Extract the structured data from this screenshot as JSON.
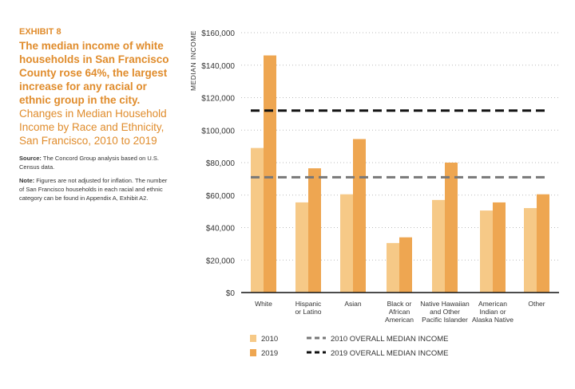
{
  "exhibit": "EXHIBIT 8",
  "headline": "The median income of white households in San Francisco County rose 64%, the largest increase for any racial or ethnic group in the city.",
  "subtitle": "Changes in Median Household Income by Race and Ethnicity, San Francisco, 2010 to 2019",
  "source_label": "Source:",
  "source_text": " The Concord Group analysis based on U.S. Census data.",
  "note_label": "Note:",
  "note_text": " Figures are not adjusted for inflation. The number of San Francisco households in each racial and ethnic category can be found in Appendix A, Exhibit A2.",
  "chart_data": {
    "type": "bar",
    "ylabel": "MEDIAN INCOME",
    "ylim": [
      0,
      160000
    ],
    "yticks": [
      0,
      20000,
      40000,
      60000,
      80000,
      100000,
      120000,
      140000,
      160000
    ],
    "ytick_labels": [
      "$0",
      "$20,000",
      "$40,000",
      "$60,000",
      "$80,000",
      "$100,000",
      "$120,000",
      "$140,000",
      "$160,000"
    ],
    "grid": "dotted horizontal",
    "categories": [
      [
        "White"
      ],
      [
        "Hispanic",
        "or Latino"
      ],
      [
        "Asian"
      ],
      [
        "Black or",
        "African",
        "American"
      ],
      [
        "Native Hawaiian",
        "and Other",
        "Pacific Islander"
      ],
      [
        "American",
        "Indian or",
        "Alaska Native"
      ],
      [
        "Other"
      ]
    ],
    "series": [
      {
        "name": "2010",
        "color": "#f6c987",
        "values": [
          89000,
          55500,
          60500,
          30500,
          57000,
          50500,
          52000
        ]
      },
      {
        "name": "2019",
        "color": "#eea651",
        "values": [
          146000,
          76500,
          94500,
          34000,
          80000,
          55500,
          60500
        ]
      }
    ],
    "reference_lines": [
      {
        "name": "2010 OVERALL MEDIAN INCOME",
        "value": 71000,
        "color": "#777777"
      },
      {
        "name": "2019 OVERALL MEDIAN INCOME",
        "value": 112000,
        "color": "#111111"
      }
    ],
    "legend_placement": "bottom"
  }
}
